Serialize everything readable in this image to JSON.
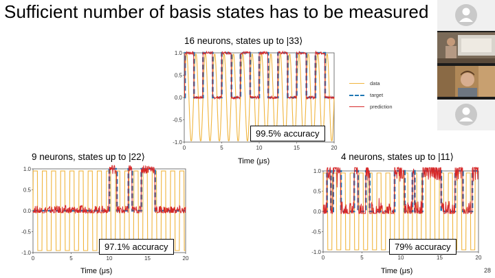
{
  "slide": {
    "title": "Sufficient number of basis states has to be measured",
    "page_number": "28"
  },
  "legend": {
    "items": [
      {
        "label": "data",
        "color": "#f0b43c",
        "style": "solid"
      },
      {
        "label": "target",
        "color": "#1f77b4",
        "style": "dashed"
      },
      {
        "label": "prediction",
        "color": "#d62728",
        "style": "solid"
      }
    ]
  },
  "video_tiles": [
    {
      "name": "participant-avatar-1",
      "kind": "avatar"
    },
    {
      "name": "participant-video-presenter",
      "kind": "video"
    },
    {
      "name": "participant-video-2",
      "kind": "video"
    },
    {
      "name": "participant-avatar-2",
      "kind": "avatar"
    }
  ],
  "chart_data": [
    {
      "type": "line",
      "subtitle": "16 neurons, states up to |33⟩",
      "xlabel": "Time (μs)",
      "xlim": [
        0,
        20
      ],
      "ylim": [
        -1.0,
        1.0
      ],
      "xticks": [
        "0",
        "5",
        "10",
        "15",
        "20"
      ],
      "yticks": [
        "1.0",
        "0.5",
        "0.0",
        "-0.5",
        "-1.0"
      ],
      "accuracy": "99.5% accuracy",
      "data_period": 1.25,
      "target_segments": [
        [
          0,
          0.1,
          0
        ],
        [
          0.1,
          1.3,
          1
        ],
        [
          1.3,
          2.5,
          0
        ],
        [
          2.5,
          3.8,
          1
        ],
        [
          3.8,
          5.0,
          0
        ],
        [
          5.0,
          6.3,
          1
        ],
        [
          6.3,
          7.5,
          0
        ],
        [
          7.5,
          8.8,
          1
        ],
        [
          8.8,
          10.0,
          0
        ],
        [
          10.0,
          11.2,
          1
        ],
        [
          11.2,
          12.5,
          0
        ],
        [
          12.5,
          13.8,
          1
        ],
        [
          13.8,
          15.0,
          0
        ],
        [
          15.0,
          16.3,
          1
        ],
        [
          16.3,
          17.5,
          0
        ],
        [
          17.5,
          18.8,
          1
        ],
        [
          18.8,
          20.0,
          0
        ]
      ],
      "series": [
        {
          "name": "data",
          "color": "#f0b43c"
        },
        {
          "name": "target",
          "color": "#1f77b4"
        },
        {
          "name": "prediction",
          "color": "#d62728"
        }
      ]
    },
    {
      "type": "line",
      "subtitle": "9 neurons, states up to |22⟩",
      "xlabel": "Time (μs)",
      "xlim": [
        0,
        20
      ],
      "ylim": [
        -1.0,
        1.0
      ],
      "xticks": [
        "0",
        "5",
        "10",
        "15",
        "20"
      ],
      "yticks": [
        "1.0",
        "0.5",
        "0.0",
        "-0.5",
        "-1.0"
      ],
      "accuracy": "97.1% accuracy",
      "data_period": 1.2,
      "target_segments": [
        [
          0,
          10.0,
          0
        ],
        [
          10.0,
          11.0,
          1
        ],
        [
          11.0,
          12.5,
          0
        ],
        [
          12.5,
          13.0,
          1
        ],
        [
          13.0,
          14.2,
          0
        ],
        [
          14.2,
          16.0,
          1
        ],
        [
          16.0,
          20.0,
          0
        ]
      ],
      "series": [
        {
          "name": "data",
          "color": "#f0b43c"
        },
        {
          "name": "target",
          "color": "#1f77b4"
        },
        {
          "name": "prediction",
          "color": "#d62728"
        }
      ]
    },
    {
      "type": "line",
      "subtitle": "4 neurons, states up to |11⟩",
      "xlabel": "Time (μs)",
      "xlim": [
        0,
        20
      ],
      "ylim": [
        -1.0,
        1.0
      ],
      "xticks": [
        "0",
        "5",
        "10",
        "15",
        "20"
      ],
      "yticks": [
        "1.0",
        "0.5",
        "0.0",
        "-0.5",
        "-1.0"
      ],
      "accuracy": "79% accuracy",
      "data_period": 1.15,
      "target_segments": [
        [
          0,
          0.5,
          0
        ],
        [
          0.5,
          1.0,
          1
        ],
        [
          1.0,
          1.3,
          0
        ],
        [
          1.3,
          2.3,
          1
        ],
        [
          2.3,
          4.0,
          0
        ],
        [
          4.0,
          4.5,
          1
        ],
        [
          4.5,
          5.5,
          0
        ],
        [
          5.5,
          6.0,
          1
        ],
        [
          6.0,
          9.2,
          0
        ],
        [
          9.2,
          10.5,
          1
        ],
        [
          10.5,
          11.5,
          0
        ],
        [
          11.5,
          11.8,
          1
        ],
        [
          11.8,
          12.8,
          0
        ],
        [
          12.8,
          15.2,
          1
        ],
        [
          15.2,
          17.0,
          0
        ],
        [
          17.0,
          18.0,
          1
        ],
        [
          18.0,
          19.2,
          0
        ],
        [
          19.2,
          20.0,
          1
        ]
      ],
      "series": [
        {
          "name": "data",
          "color": "#f0b43c"
        },
        {
          "name": "target",
          "color": "#1f77b4"
        },
        {
          "name": "prediction",
          "color": "#d62728"
        }
      ]
    }
  ]
}
